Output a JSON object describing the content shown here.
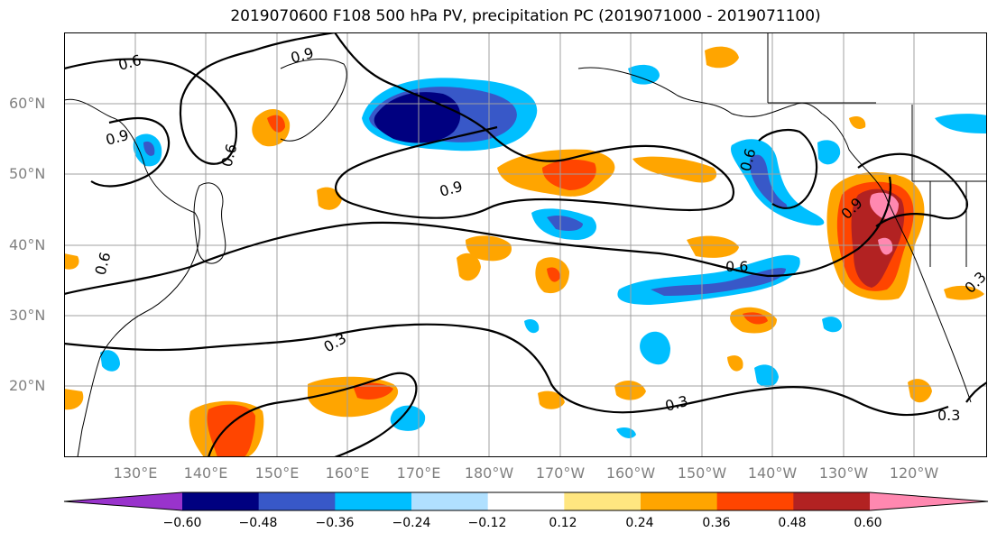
{
  "title": "2019070600 F108 500 hPa PV, precipitation PC (2019071000 - 2019071100)",
  "lat_labels": [
    "60°N",
    "50°N",
    "40°N",
    "30°N",
    "20°N"
  ],
  "lon_labels": [
    "130°E",
    "140°E",
    "150°E",
    "160°E",
    "170°E",
    "180°W",
    "170°W",
    "160°W",
    "150°W",
    "140°W",
    "130°W",
    "120°W"
  ],
  "contour_labels": [
    "0.6",
    "0.9",
    "0.9",
    "0.6",
    "0.9",
    "0.6",
    "0.6",
    "0.9",
    "0.6",
    "0.3",
    "0.3",
    "0.3",
    "0.3"
  ],
  "colorbar": {
    "ticks": [
      "−0.60",
      "−0.48",
      "−0.36",
      "−0.24",
      "−0.12",
      "0.12",
      "0.24",
      "0.36",
      "0.48",
      "0.60"
    ],
    "colors": [
      "#9933cc",
      "#000080",
      "#3858c8",
      "#00bfff",
      "#b0e0ff",
      "#ffffff",
      "#ffe680",
      "#ffa500",
      "#ff4500",
      "#b22222",
      "#ff88b0"
    ]
  }
}
